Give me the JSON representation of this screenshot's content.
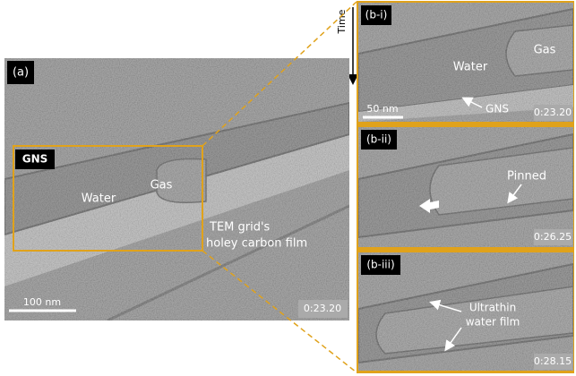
{
  "time_label": "Time",
  "panel_a": {
    "label": "(a)",
    "box_label": "GNS",
    "water": "Water",
    "gas": "Gas",
    "annotation": [
      "TEM grid's",
      "holey carbon film"
    ],
    "scale_bar": "100 nm",
    "timestamp": "0:23.20"
  },
  "panel_b_i": {
    "label": "(b-i)",
    "water": "Water",
    "gas": "Gas",
    "scale_bar": "50 nm",
    "gns": "GNS",
    "timestamp": "0:23.20"
  },
  "panel_b_ii": {
    "label": "(b-ii)",
    "pinned": "Pinned",
    "timestamp": "0:26.25"
  },
  "panel_b_iii": {
    "label": "(b-iii)",
    "annotation": [
      "Ultrathin",
      "water film"
    ],
    "timestamp": "0:28.15"
  }
}
